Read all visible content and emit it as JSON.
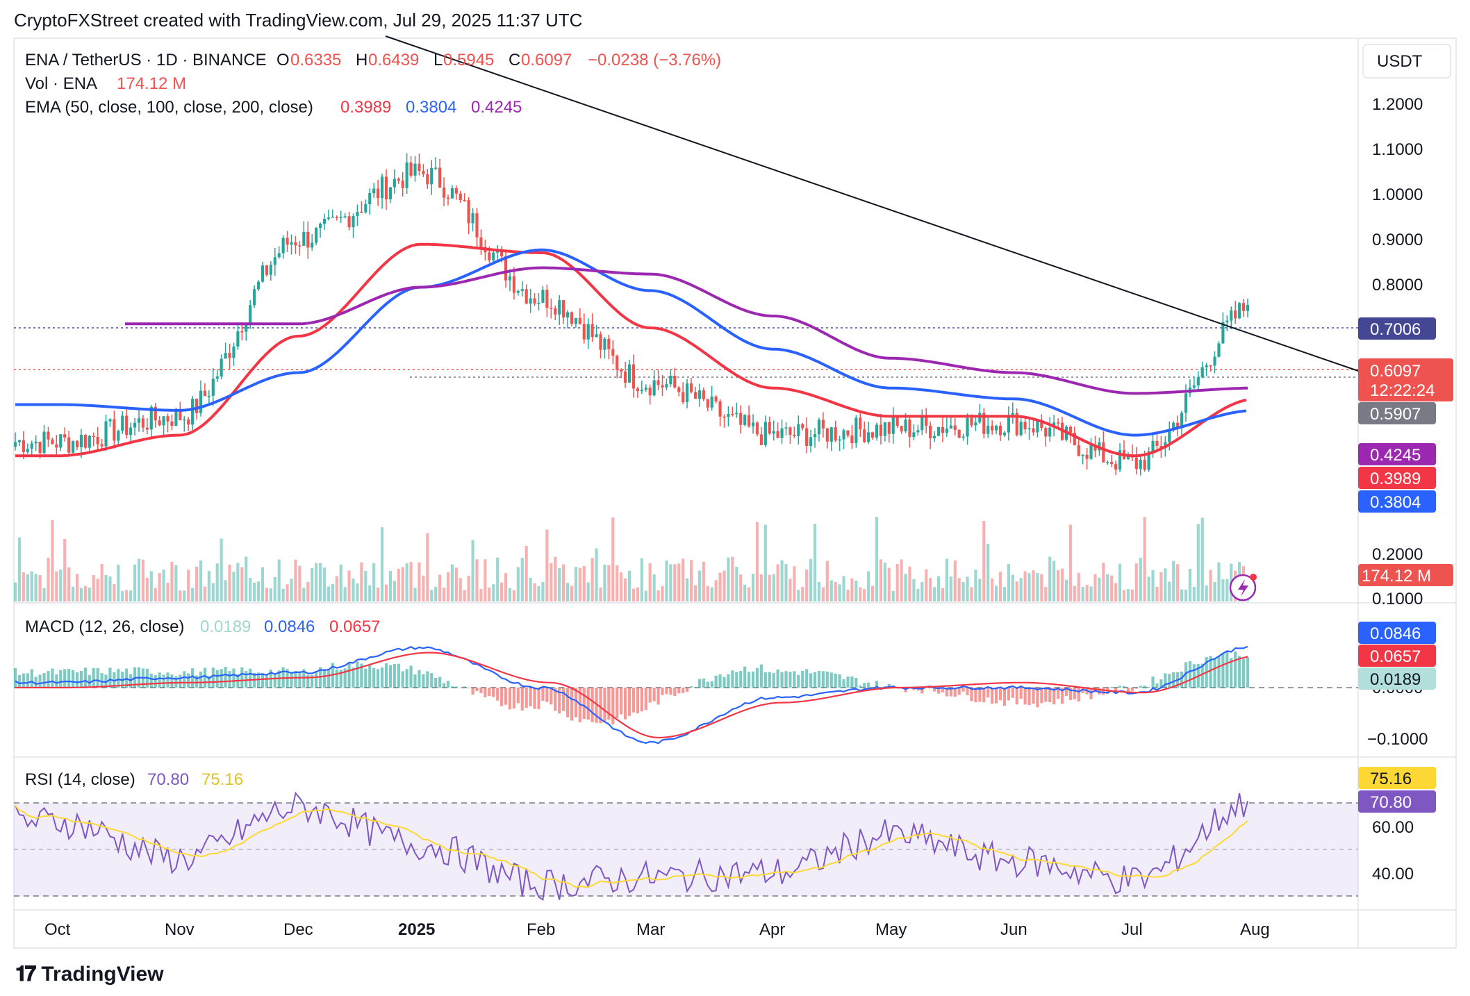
{
  "header": {
    "credit": "CryptoFXStreet created with TradingView.com, Jul 29, 2025 11:37 UTC"
  },
  "legend": {
    "symbol": "ENA / TetherUS · 1D · BINANCE",
    "o_label": "O",
    "o_val": "0.6335",
    "h_label": "H",
    "h_val": "0.6439",
    "l_label": "L",
    "l_val": "0.5945",
    "c_label": "C",
    "c_val": "0.6097",
    "change": "−0.0238 (−3.76%)",
    "vol_label": "Vol · ENA",
    "vol_val": "174.12 M",
    "ema_label": "EMA (50, close, 100, close, 200, close)",
    "ema50": "0.3989",
    "ema100": "0.3804",
    "ema200": "0.4245"
  },
  "axis": {
    "currency": "USDT",
    "price_ticks": [
      "1.2000",
      "1.1000",
      "1.0000",
      "0.9000",
      "0.8000",
      "0.2000",
      "0.1000"
    ],
    "macd_ticks": [
      "0.0000",
      "−0.1000"
    ],
    "rsi_ticks": [
      "60.00",
      "40.00"
    ],
    "x_labels": [
      "Oct",
      "Nov",
      "Dec",
      "2025",
      "Feb",
      "Mar",
      "Apr",
      "May",
      "Jun",
      "Jul",
      "Aug"
    ]
  },
  "badges": {
    "high": "0.7006",
    "last": "0.6097",
    "countdown": "12:22:24",
    "support": "0.5907",
    "ema200": "0.4245",
    "ema50": "0.3989",
    "ema100": "0.3804",
    "volume": "174.12 M",
    "macd": "0.0846",
    "signal": "0.0657",
    "hist": "0.0189",
    "rsi_ma": "75.16",
    "rsi": "70.80"
  },
  "macd": {
    "label": "MACD (12, 26, close)",
    "hist": "0.0189",
    "macd": "0.0846",
    "signal": "0.0657"
  },
  "rsi": {
    "label": "RSI (14, close)",
    "rsi": "70.80",
    "ma": "75.16"
  },
  "footer": {
    "brand": "TradingView"
  },
  "colors": {
    "up": "#26a69a",
    "down": "#ef5350",
    "ema50": "#f23645",
    "ema100": "#2962ff",
    "ema200": "#9c27b0",
    "rsi": "#7e57c2",
    "rsi_ma": "#fdd835"
  },
  "chart_data": {
    "type": "line",
    "x": [
      "Oct",
      "Nov",
      "Dec",
      "2025",
      "Feb",
      "Mar",
      "Apr",
      "May",
      "Jun",
      "Jul",
      "Aug"
    ],
    "price_ylim_log": [
      0.1,
      1.2
    ],
    "series": [
      {
        "name": "ENA / TetherUS",
        "x": [
          "Oct",
          "Nov",
          "Dec",
          "2025",
          "Feb",
          "Mar",
          "Apr",
          "May",
          "Jun",
          "Jul",
          "Aug"
        ],
        "values": [
          0.33,
          0.37,
          0.82,
          1.1,
          0.63,
          0.43,
          0.34,
          0.35,
          0.36,
          0.3,
          0.61
        ]
      },
      {
        "name": "EMA 50",
        "x": [
          "Oct",
          "Nov",
          "Dec",
          "2025",
          "Feb",
          "Mar",
          "Apr",
          "May",
          "Jun",
          "Jul",
          "Aug"
        ],
        "values": [
          0.31,
          0.34,
          0.53,
          0.8,
          0.77,
          0.55,
          0.42,
          0.37,
          0.37,
          0.31,
          0.4
        ]
      },
      {
        "name": "EMA 100",
        "x": [
          "Oct",
          "Nov",
          "Dec",
          "2025",
          "Feb",
          "Mar",
          "Apr",
          "May",
          "Jun",
          "Jul",
          "Aug"
        ],
        "values": [
          0.39,
          0.38,
          0.45,
          0.66,
          0.78,
          0.65,
          0.5,
          0.42,
          0.4,
          0.34,
          0.38
        ]
      },
      {
        "name": "EMA 200",
        "x": [
          "Nov",
          "Dec",
          "2025",
          "Feb",
          "Mar",
          "Apr",
          "May",
          "Jun",
          "Jul",
          "Aug"
        ],
        "values": [
          0.56,
          0.56,
          0.66,
          0.72,
          0.7,
          0.58,
          0.48,
          0.45,
          0.41,
          0.42
        ]
      }
    ],
    "annotations": {
      "resistance_high": 0.7006,
      "support": 0.5907,
      "trendline": "descending from Dec high to 0.7006"
    },
    "macd": {
      "macd": [
        0.01,
        0.02,
        0.03,
        0.08,
        0.0,
        -0.11,
        -0.02,
        0.0,
        0.0,
        -0.01,
        0.0846
      ],
      "signal": [
        0.0,
        0.01,
        0.02,
        0.07,
        0.01,
        -0.1,
        -0.03,
        0.0,
        0.01,
        -0.01,
        0.0657
      ]
    },
    "rsi_values": [
      62,
      46,
      68,
      52,
      35,
      38,
      40,
      56,
      45,
      37,
      70.8
    ],
    "rsi_bands": [
      30,
      50,
      70
    ]
  }
}
